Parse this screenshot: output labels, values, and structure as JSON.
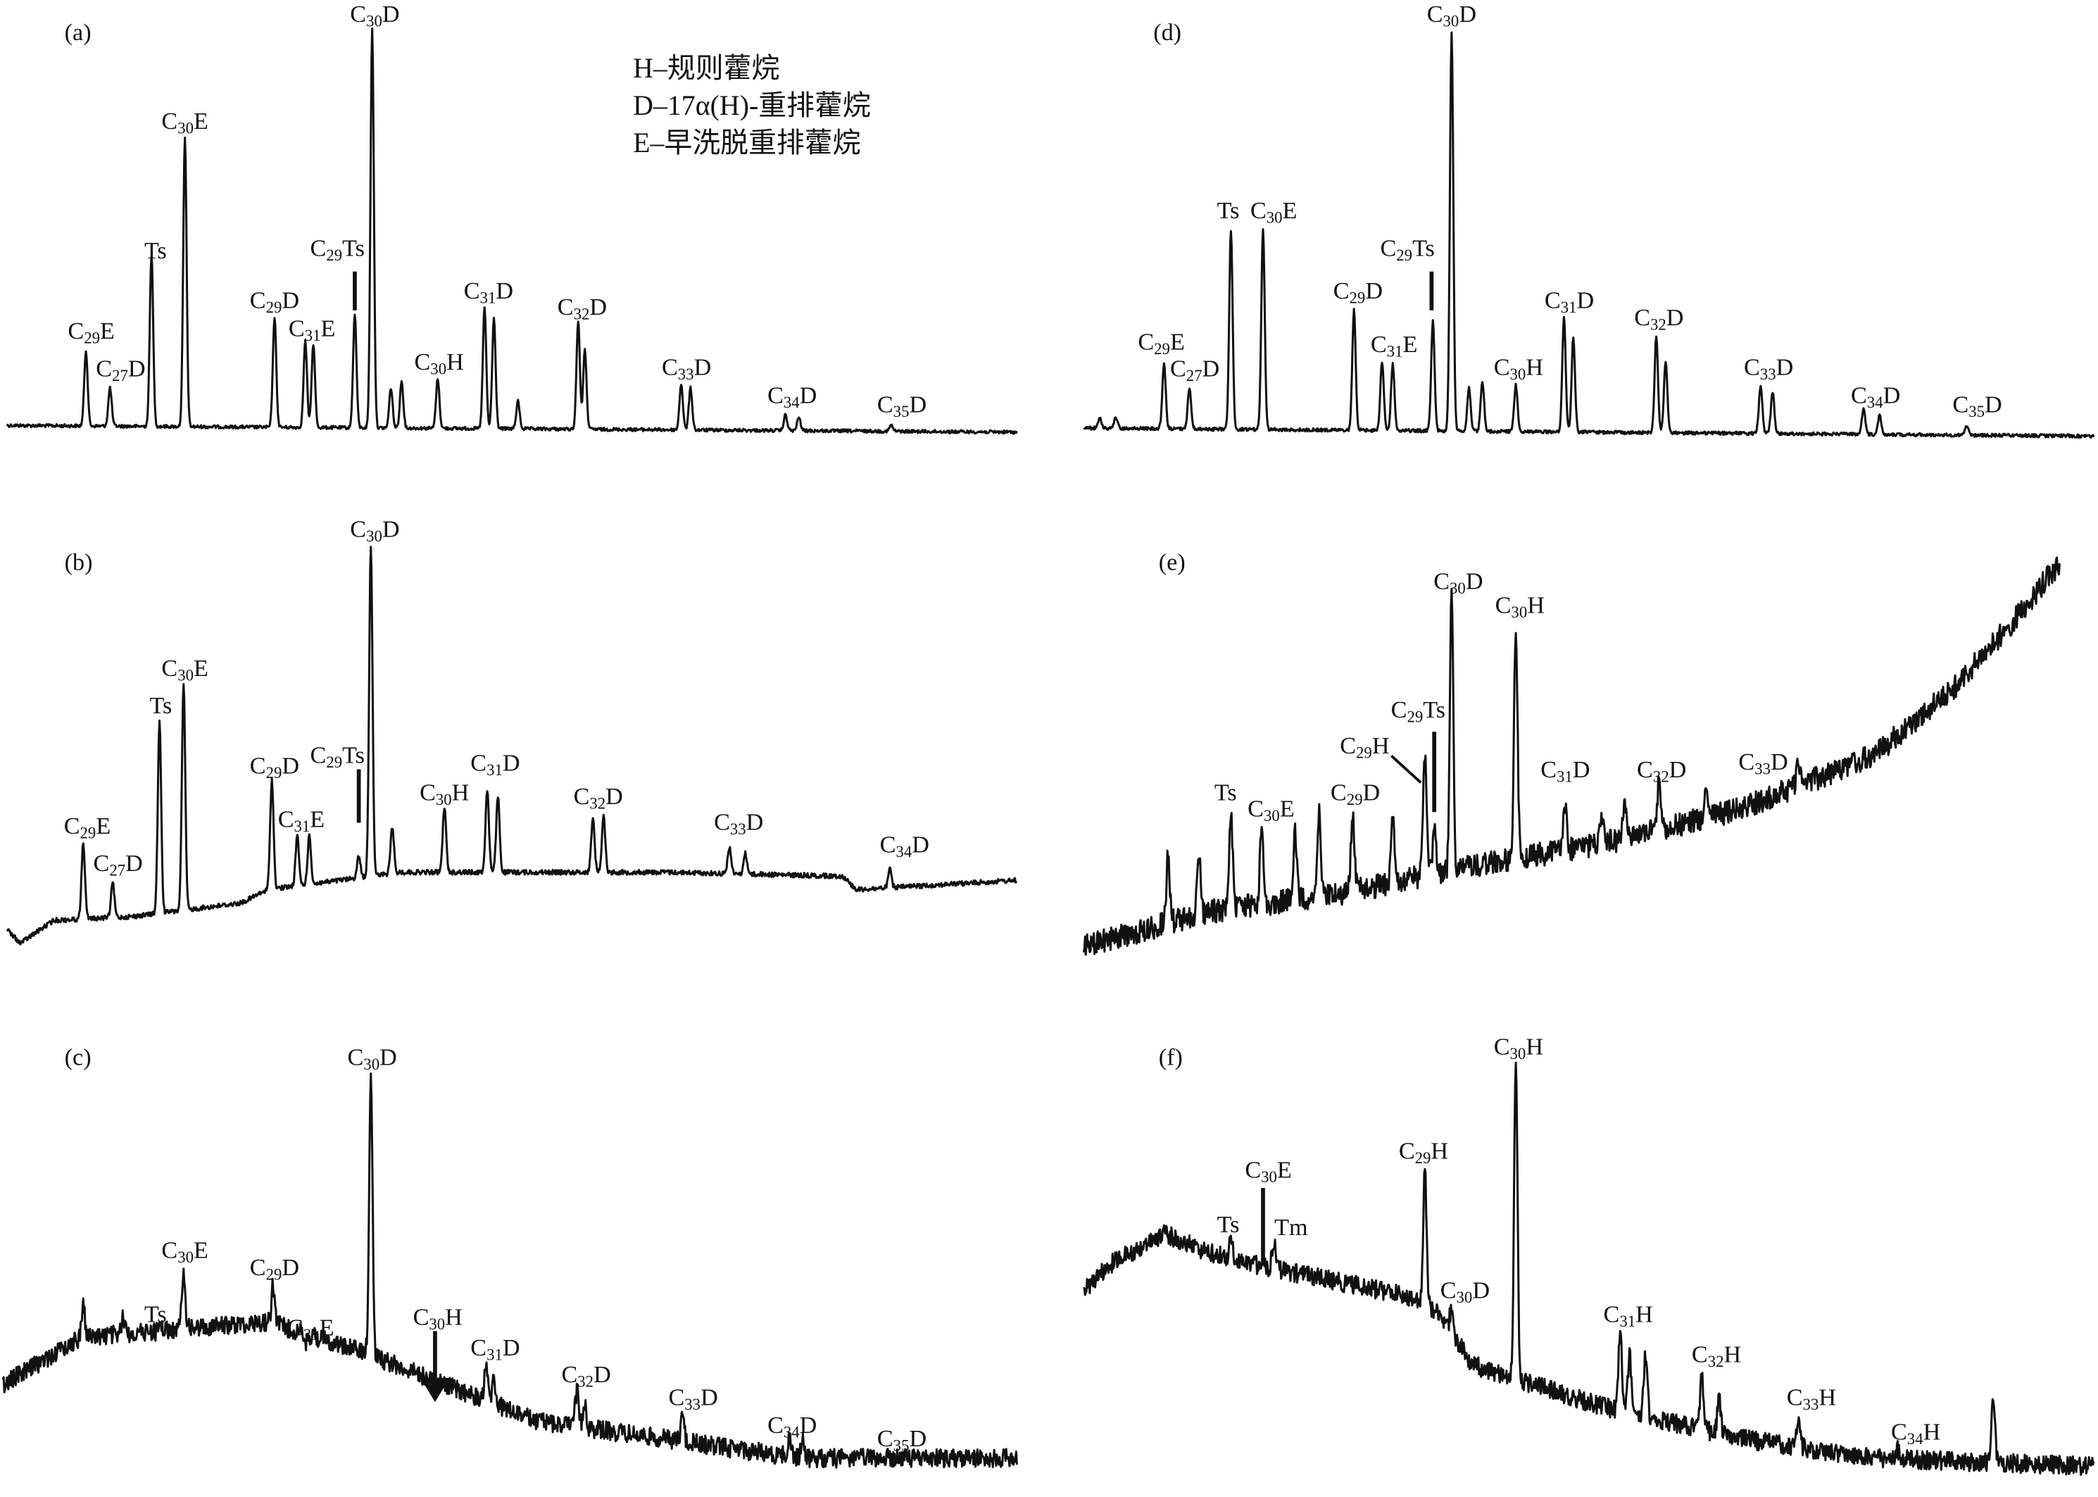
{
  "legend": [
    "H–规则藿烷",
    "D–17α(H)-重排藿烷",
    "E–早洗脱重排藿烷"
  ],
  "panels": [
    {
      "label": "(a)",
      "peaks": [
        {
          "pre": "C",
          "sub": "29",
          "post": "E"
        },
        {
          "pre": "C",
          "sub": "27",
          "post": "D"
        },
        {
          "pre": "Ts"
        },
        {
          "pre": "C",
          "sub": "30",
          "post": "E"
        },
        {
          "pre": "C",
          "sub": "29",
          "post": "D"
        },
        {
          "pre": "C",
          "sub": "31",
          "post": "E"
        },
        {
          "pre": "C",
          "sub": "29",
          "post": "Ts"
        },
        {
          "pre": "C",
          "sub": "30",
          "post": "D"
        },
        {
          "pre": "C",
          "sub": "30",
          "post": "H"
        },
        {
          "pre": "C",
          "sub": "31",
          "post": "D"
        },
        {
          "pre": "C",
          "sub": "32",
          "post": "D"
        },
        {
          "pre": "C",
          "sub": "33",
          "post": "D"
        },
        {
          "pre": "C",
          "sub": "34",
          "post": "D"
        },
        {
          "pre": "C",
          "sub": "35",
          "post": "D"
        }
      ]
    },
    {
      "label": "(b)",
      "peaks": [
        {
          "pre": "C",
          "sub": "29",
          "post": "E"
        },
        {
          "pre": "C",
          "sub": "27",
          "post": "D"
        },
        {
          "pre": "Ts"
        },
        {
          "pre": "C",
          "sub": "30",
          "post": "E"
        },
        {
          "pre": "C",
          "sub": "29",
          "post": "D"
        },
        {
          "pre": "C",
          "sub": "31",
          "post": "E"
        },
        {
          "pre": "C",
          "sub": "29",
          "post": "Ts"
        },
        {
          "pre": "C",
          "sub": "30",
          "post": "D"
        },
        {
          "pre": "C",
          "sub": "30",
          "post": "H"
        },
        {
          "pre": "C",
          "sub": "31",
          "post": "D"
        },
        {
          "pre": "C",
          "sub": "32",
          "post": "D"
        },
        {
          "pre": "C",
          "sub": "33",
          "post": "D"
        },
        {
          "pre": "C",
          "sub": "34",
          "post": "D"
        }
      ]
    },
    {
      "label": "(c)",
      "peaks": [
        {
          "pre": "Ts"
        },
        {
          "pre": "C",
          "sub": "30",
          "post": "E"
        },
        {
          "pre": "C",
          "sub": "29",
          "post": "D"
        },
        {
          "pre": "C",
          "sub": "31",
          "post": "E"
        },
        {
          "pre": "C",
          "sub": "30",
          "post": "D"
        },
        {
          "pre": "C",
          "sub": "30",
          "post": "H"
        },
        {
          "pre": "C",
          "sub": "31",
          "post": "D"
        },
        {
          "pre": "C",
          "sub": "32",
          "post": "D"
        },
        {
          "pre": "C",
          "sub": "33",
          "post": "D"
        },
        {
          "pre": "C",
          "sub": "34",
          "post": "D"
        },
        {
          "pre": "C",
          "sub": "35",
          "post": "D"
        }
      ]
    },
    {
      "label": "(d)",
      "peaks": [
        {
          "pre": "C",
          "sub": "29",
          "post": "E"
        },
        {
          "pre": "C",
          "sub": "27",
          "post": "D"
        },
        {
          "pre": "Ts"
        },
        {
          "pre": "C",
          "sub": "30",
          "post": "E"
        },
        {
          "pre": "C",
          "sub": "29",
          "post": "D"
        },
        {
          "pre": "C",
          "sub": "31",
          "post": "E"
        },
        {
          "pre": "C",
          "sub": "29",
          "post": "Ts"
        },
        {
          "pre": "C",
          "sub": "30",
          "post": "D"
        },
        {
          "pre": "C",
          "sub": "30",
          "post": "H"
        },
        {
          "pre": "C",
          "sub": "31",
          "post": "D"
        },
        {
          "pre": "C",
          "sub": "32",
          "post": "D"
        },
        {
          "pre": "C",
          "sub": "33",
          "post": "D"
        },
        {
          "pre": "C",
          "sub": "34",
          "post": "D"
        },
        {
          "pre": "C",
          "sub": "35",
          "post": "D"
        }
      ]
    },
    {
      "label": "(e)",
      "peaks": [
        {
          "pre": "Ts"
        },
        {
          "pre": "C",
          "sub": "30",
          "post": "E"
        },
        {
          "pre": "C",
          "sub": "29",
          "post": "D"
        },
        {
          "pre": "C",
          "sub": "29",
          "post": "H"
        },
        {
          "pre": "C",
          "sub": "29",
          "post": "Ts"
        },
        {
          "pre": "C",
          "sub": "30",
          "post": "D"
        },
        {
          "pre": "C",
          "sub": "30",
          "post": "H"
        },
        {
          "pre": "C",
          "sub": "31",
          "post": "D"
        },
        {
          "pre": "C",
          "sub": "32",
          "post": "D"
        },
        {
          "pre": "C",
          "sub": "33",
          "post": "D"
        }
      ]
    },
    {
      "label": "(f)",
      "peaks": [
        {
          "pre": "C",
          "sub": "30",
          "post": "E"
        },
        {
          "pre": "Ts"
        },
        {
          "pre": "Tm"
        },
        {
          "pre": "C",
          "sub": "29",
          "post": "H"
        },
        {
          "pre": "C",
          "sub": "30",
          "post": "D"
        },
        {
          "pre": "C",
          "sub": "30",
          "post": "H"
        },
        {
          "pre": "C",
          "sub": "31",
          "post": "H"
        },
        {
          "pre": "C",
          "sub": "32",
          "post": "H"
        },
        {
          "pre": "C",
          "sub": "33",
          "post": "H"
        },
        {
          "pre": "C",
          "sub": "34",
          "post": "H"
        }
      ]
    }
  ]
}
